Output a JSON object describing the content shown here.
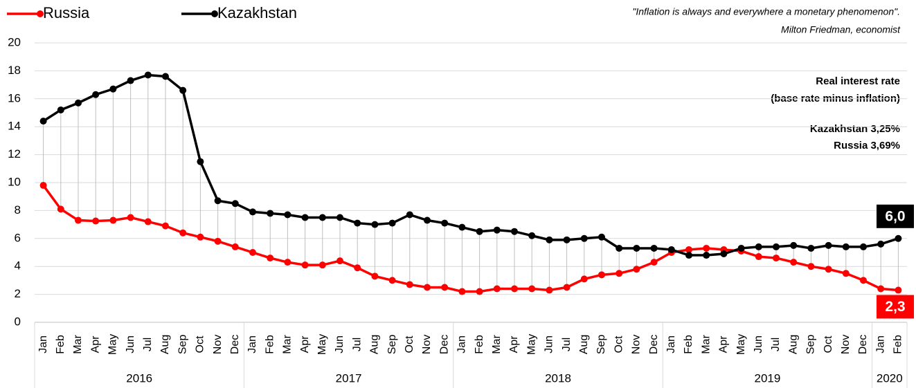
{
  "chart_data": {
    "type": "line",
    "annotations": {
      "quote": [
        "\"Inflation is always and everywhere a monetary phenomenon\".",
        "Milton Friedman, economist"
      ],
      "note": [
        "Real interest rate",
        "(base rate minus inflation)",
        "Kazakhstan 3,25%",
        "Russia 3,69%"
      ]
    },
    "categories": [
      "Jan",
      "Feb",
      "Mar",
      "Apr",
      "May",
      "Jun",
      "Jul",
      "Aug",
      "Sep",
      "Oct",
      "Nov",
      "Dec",
      "Jan",
      "Feb",
      "Mar",
      "Apr",
      "May",
      "Jun",
      "Jul",
      "Aug",
      "Sep",
      "Oct",
      "Nov",
      "Dec",
      "Jan",
      "Feb",
      "Mar",
      "Apr",
      "May",
      "Jun",
      "Jul",
      "Aug",
      "Sep",
      "Oct",
      "Nov",
      "Dec",
      "Jan",
      "Feb",
      "Mar",
      "Apr",
      "May",
      "Jun",
      "Jul",
      "Aug",
      "Sep",
      "Oct",
      "Nov",
      "Dec",
      "Jan",
      "Feb"
    ],
    "years": [
      "2016",
      "2017",
      "2018",
      "2019",
      "2020"
    ],
    "series": [
      {
        "name": "Russia",
        "color": "#ff0000",
        "last_label": "2,3",
        "values": [
          9.8,
          8.1,
          7.3,
          7.25,
          7.3,
          7.5,
          7.2,
          6.9,
          6.4,
          6.1,
          5.8,
          5.4,
          5.0,
          4.6,
          4.3,
          4.1,
          4.1,
          4.4,
          3.9,
          3.3,
          3.0,
          2.7,
          2.5,
          2.5,
          2.2,
          2.2,
          2.4,
          2.4,
          2.4,
          2.3,
          2.5,
          3.1,
          3.4,
          3.5,
          3.8,
          4.3,
          5.0,
          5.2,
          5.3,
          5.2,
          5.1,
          4.7,
          4.6,
          4.3,
          4.0,
          3.8,
          3.5,
          3.0,
          2.4,
          2.3
        ]
      },
      {
        "name": "Kazakhstan",
        "color": "#000000",
        "last_label": "6,0",
        "values": [
          14.4,
          15.2,
          15.7,
          16.3,
          16.7,
          17.3,
          17.7,
          17.6,
          16.6,
          11.5,
          8.7,
          8.5,
          7.9,
          7.8,
          7.7,
          7.5,
          7.5,
          7.5,
          7.1,
          7.0,
          7.1,
          7.7,
          7.3,
          7.1,
          6.8,
          6.5,
          6.6,
          6.5,
          6.2,
          5.9,
          5.9,
          6.0,
          6.1,
          5.3,
          5.3,
          5.3,
          5.2,
          4.8,
          4.8,
          4.9,
          5.3,
          5.4,
          5.4,
          5.5,
          5.3,
          5.5,
          5.4,
          5.4,
          5.6,
          6.0
        ]
      }
    ],
    "ylim": [
      0,
      20
    ],
    "yticks": [
      0,
      2,
      4,
      6,
      8,
      10,
      12,
      14,
      16,
      18,
      20
    ],
    "grid": true,
    "drop_lines": true
  }
}
